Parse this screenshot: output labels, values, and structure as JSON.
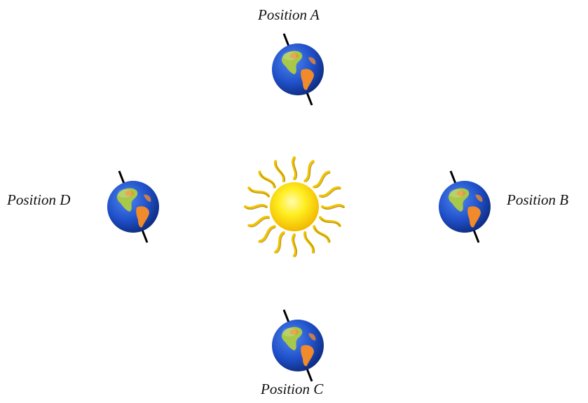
{
  "diagram": {
    "labels": {
      "position_a": "Position A",
      "position_b": "Position B",
      "position_c": "Position C",
      "position_d": "Position D"
    },
    "colors": {
      "ocean": "#1f4fc8",
      "ocean_light": "#4f86f0",
      "land_green": "#a8c84a",
      "land_orange": "#f08a2a",
      "sun_core": "#ffe600",
      "sun_rays": "#f2c200",
      "axis": "#000000"
    },
    "icons": {
      "sun": "sun-icon",
      "earth": "earth-globe-icon"
    }
  }
}
